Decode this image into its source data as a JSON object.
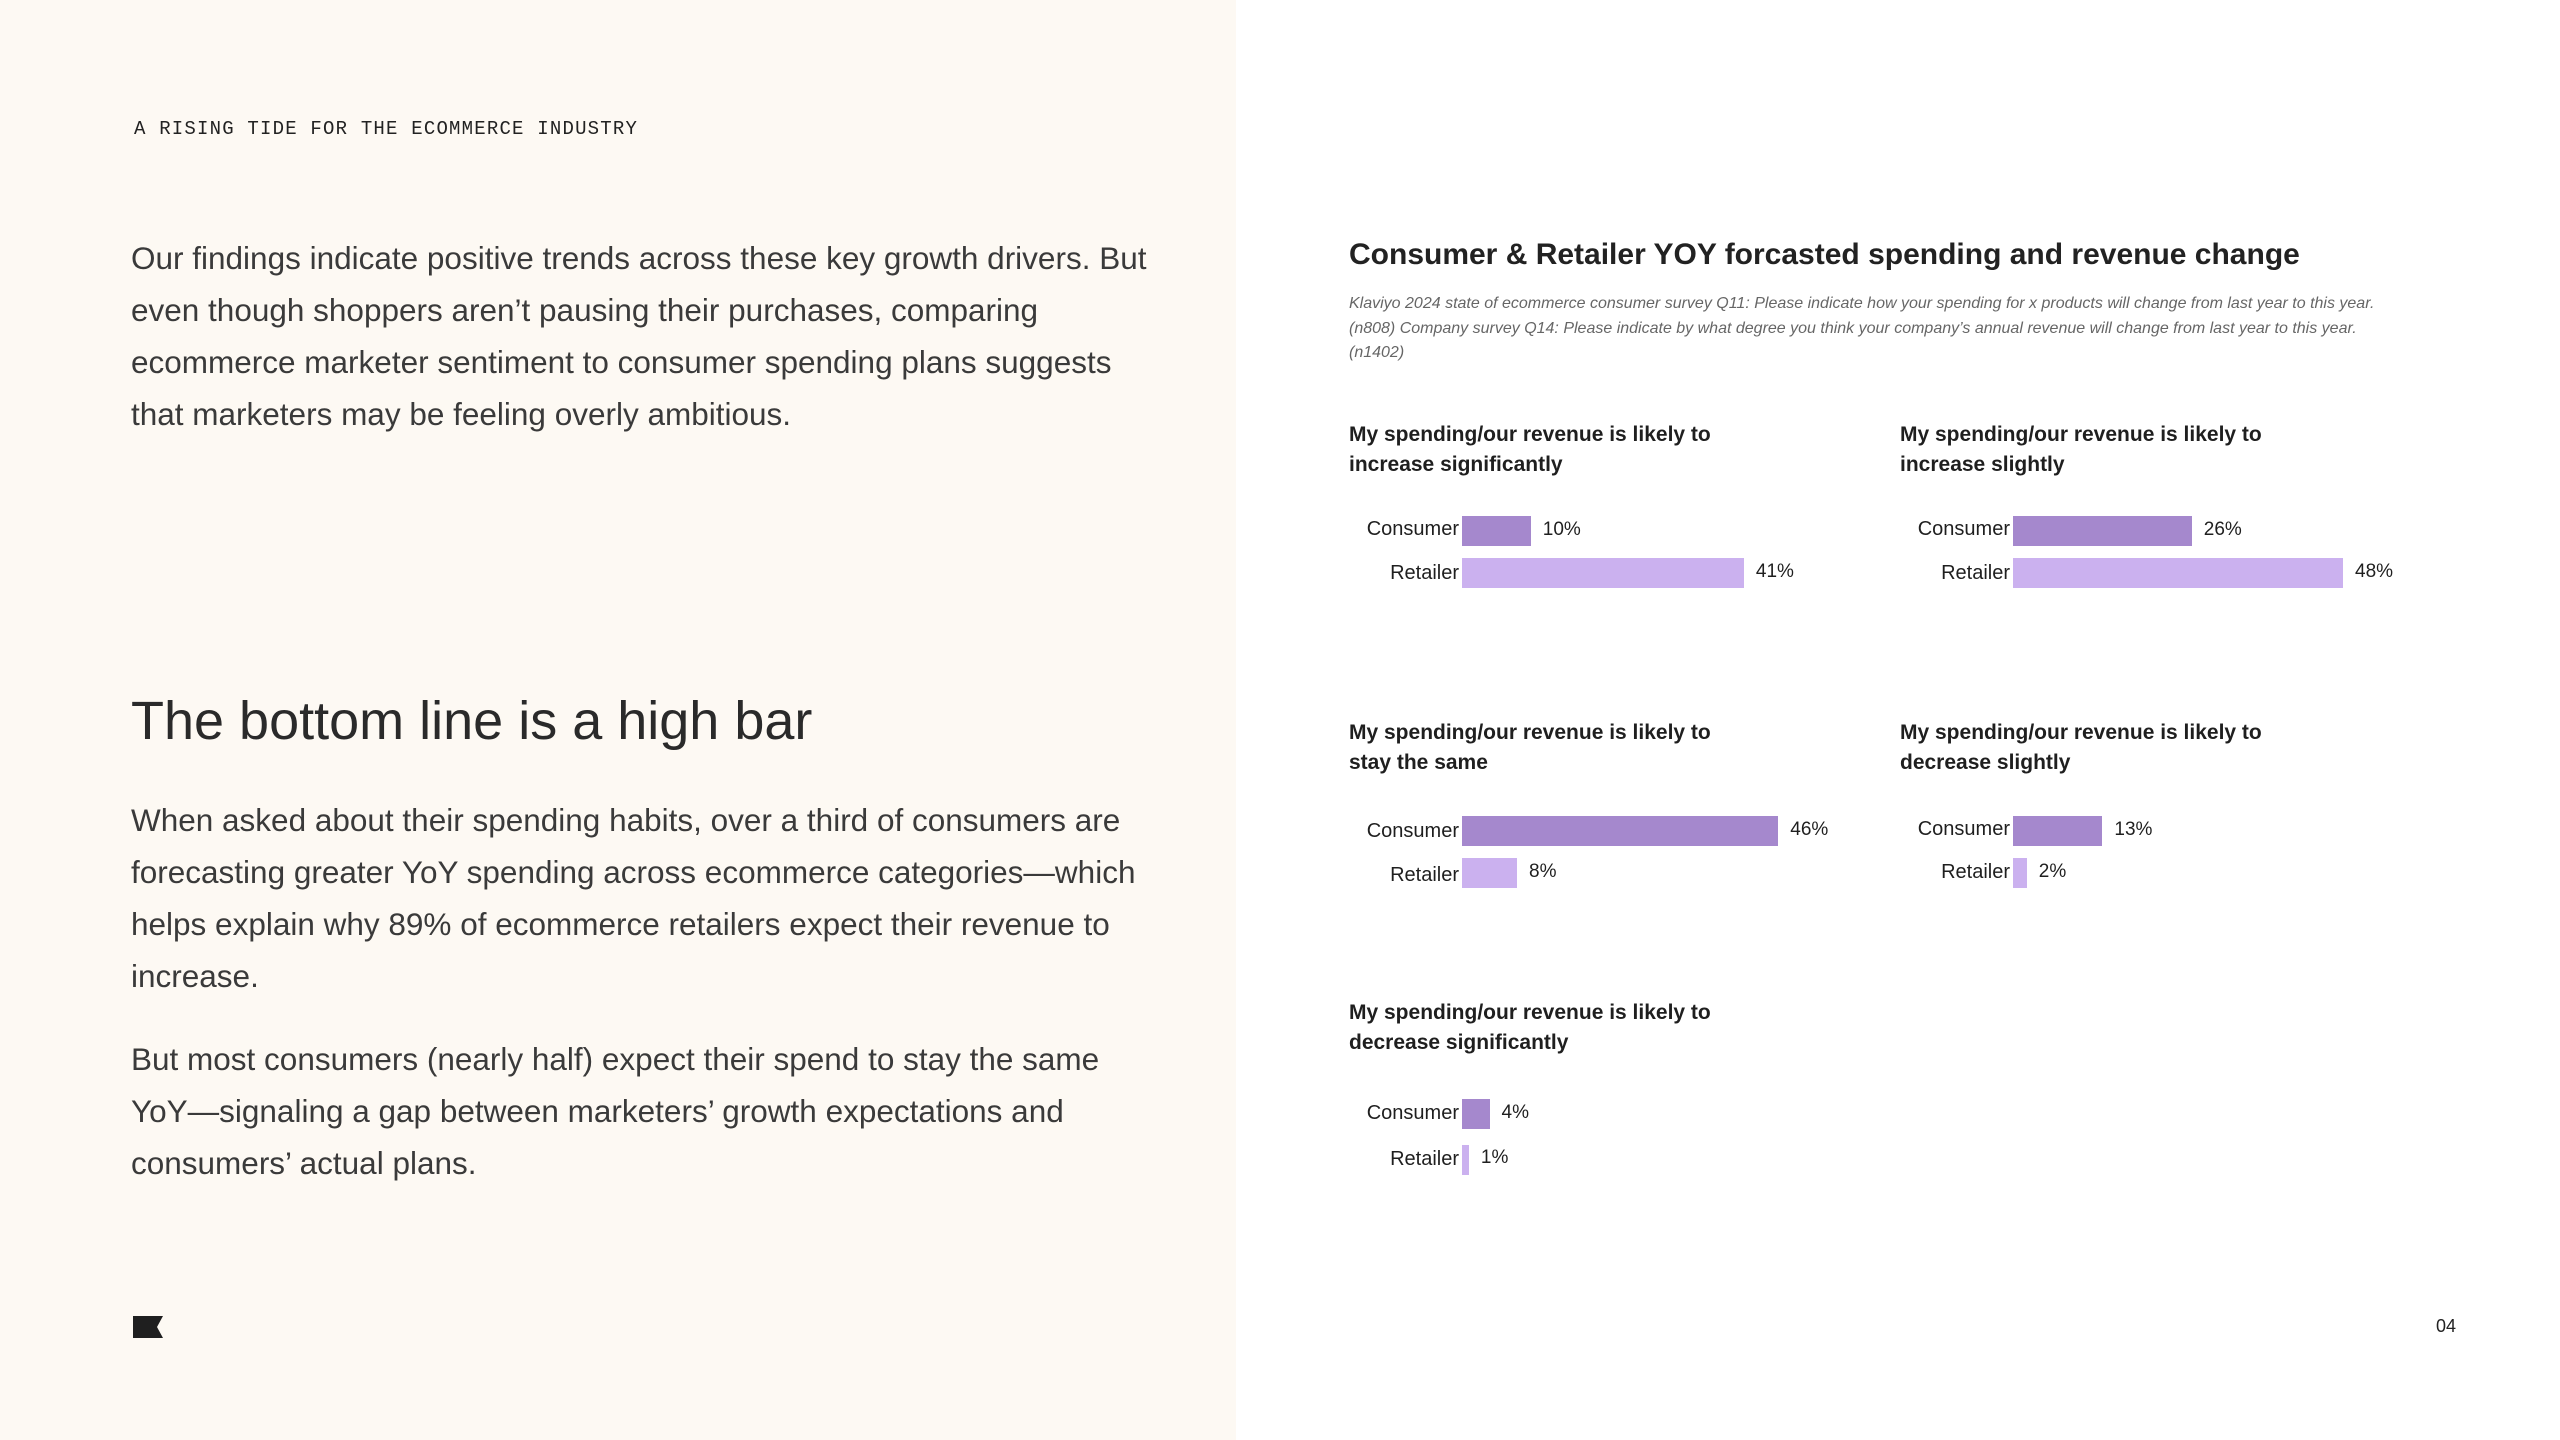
{
  "section_label": "A RISING TIDE FOR THE ECOMMERCE INDUSTRY",
  "intro": "Our findings indicate positive trends across these key growth drivers. But even though shoppers aren’t pausing their purchases, comparing ecommerce marketer sentiment to consumer spending plans suggests that marketers may be feeling overly ambitious.",
  "heading": "The bottom line is a high bar",
  "paragraph1": "When asked about their spending habits, over a third of consumers are forecasting greater YoY spending across ecommerce categories—which helps explain why 89% of ecommerce retailers expect their revenue to increase.",
  "paragraph2": "But most consumers (nearly half) expect their spend to stay the same YoY—signaling a gap between marketers’ growth expectations and consumers’ actual plans.",
  "page_number": "04",
  "colors": {
    "consumer": "#a588cd",
    "retailer": "#cbb1ef"
  },
  "chart_data": {
    "type": "bar",
    "title": "Consumer & Retailer YOY forcasted spending and revenue change",
    "source": "Klaviyo 2024 state of ecommerce consumer survey Q11: Please indicate how your spending for x products will change from last year to this year. (n808) Company survey Q14: Please indicate by what degree you think your company’s annual revenue will change from last year to this year. (n1402)",
    "series_names": [
      "Consumer",
      "Retailer"
    ],
    "unit": "%",
    "xlim": [
      0,
      48
    ],
    "panels": [
      {
        "title": "My spending/our revenue is likely to increase significantly",
        "values": [
          10,
          41
        ],
        "labels": [
          "10%",
          "41%"
        ]
      },
      {
        "title": "My spending/our revenue is likely to increase slightly",
        "values": [
          26,
          48
        ],
        "labels": [
          "26%",
          "48%"
        ]
      },
      {
        "title": "My spending/our revenue is likely to stay the same",
        "values": [
          46,
          8
        ],
        "labels": [
          "46%",
          "8%"
        ]
      },
      {
        "title": "My spending/our revenue is likely to decrease slightly",
        "values": [
          13,
          2
        ],
        "labels": [
          "13%",
          "2%"
        ]
      },
      {
        "title": "My spending/our revenue is likely to decrease significantly",
        "values": [
          4,
          1
        ],
        "labels": [
          "4%",
          "1%"
        ]
      }
    ]
  }
}
